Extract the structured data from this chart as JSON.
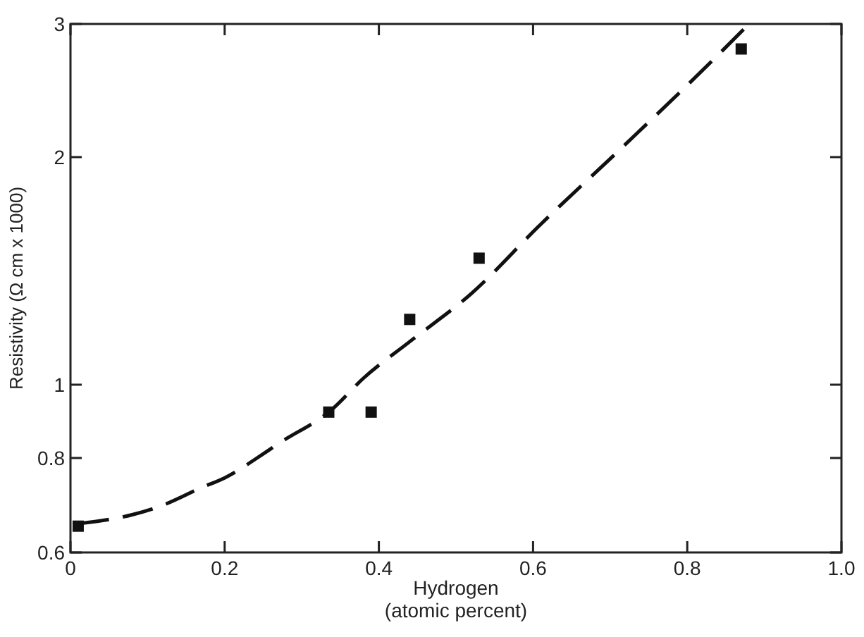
{
  "chart_data": {
    "type": "scatter",
    "xlabel": "Hydrogen\n(atomic percent)",
    "ylabel": "Resistivity (Ω cm x 1000)",
    "log": "y",
    "grid": false,
    "xlim": [
      0,
      1
    ],
    "xticks": [
      0,
      0.2,
      0.4,
      0.6,
      0.8,
      {
        "value": 1,
        "label": "1.0"
      }
    ],
    "ylim": [
      0.6,
      3
    ],
    "yticks": [
      0.6,
      0.8,
      1,
      2,
      3
    ],
    "series": [
      {
        "color": "#111111",
        "marker": "square",
        "x": [
          0.01,
          0.335,
          0.39,
          0.44,
          0.53,
          0.87
        ],
        "values": [
          0.65,
          0.92,
          0.92,
          1.22,
          1.47,
          2.78
        ]
      },
      {
        "type": "line",
        "color": "#111111",
        "line_style": "dashed",
        "marker": "none",
        "x": [
          0.01,
          0.08,
          0.12,
          0.17,
          0.2,
          0.25,
          0.27,
          0.34,
          0.38,
          0.44,
          0.52,
          0.61,
          0.72,
          0.84,
          0.88
        ],
        "values": [
          0.655,
          0.673,
          0.693,
          0.731,
          0.753,
          0.81,
          0.836,
          0.929,
          1.02,
          1.14,
          1.32,
          1.63,
          2.08,
          2.73,
          3.0
        ]
      }
    ]
  }
}
